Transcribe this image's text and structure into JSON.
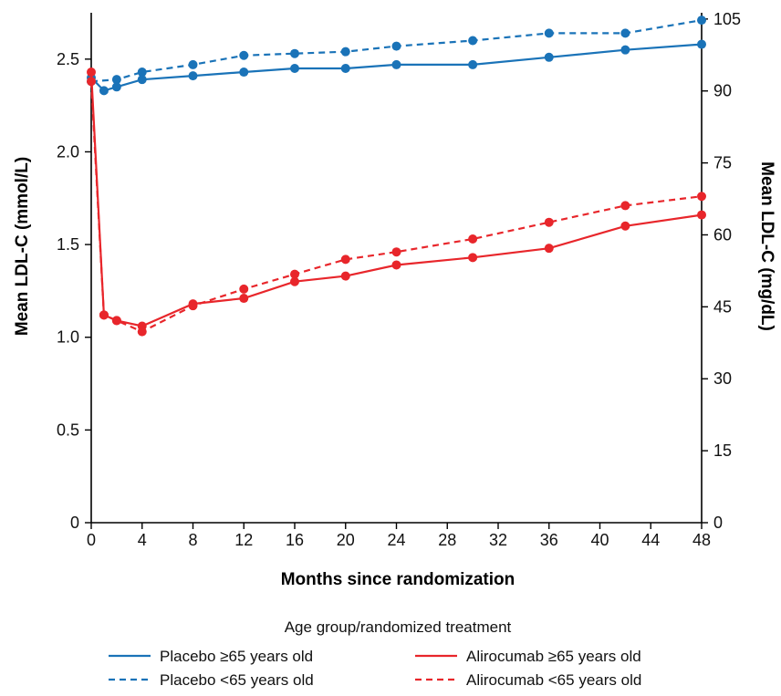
{
  "chart_data": {
    "type": "line",
    "xlabel": "Months since randomization",
    "ylabel_left": "Mean LDL-C (mmol/L)",
    "ylabel_right": "Mean LDL-C (mg/dL)",
    "xlim": [
      0,
      48
    ],
    "ylim": [
      0,
      2.75
    ],
    "ylim_right": [
      0,
      106.3
    ],
    "x_ticks": [
      0,
      4,
      8,
      12,
      16,
      20,
      24,
      28,
      32,
      36,
      40,
      44,
      48
    ],
    "y_ticks_left": [
      0,
      0.5,
      1.0,
      1.5,
      2.0,
      2.5
    ],
    "y_tick_labels_left": [
      "0",
      "0.5",
      "1.0",
      "1.5",
      "2.0",
      "2.5"
    ],
    "y_ticks_right": [
      0,
      15,
      30,
      45,
      60,
      75,
      90,
      105
    ],
    "y_tick_labels_right": [
      "0",
      "15",
      "30",
      "45",
      "60",
      "75",
      "90",
      "105"
    ],
    "grid": false,
    "legend_title": "Age group/randomized treatment",
    "legend_position": "bottom",
    "series": [
      {
        "name": "Placebo ≥65 years old",
        "color": "#1a73b8",
        "dash": "solid",
        "x": [
          0,
          1,
          2,
          4,
          8,
          12,
          16,
          20,
          24,
          30,
          36,
          42,
          48
        ],
        "y": [
          2.4,
          2.33,
          2.35,
          2.39,
          2.41,
          2.43,
          2.45,
          2.45,
          2.47,
          2.47,
          2.51,
          2.55,
          2.58
        ]
      },
      {
        "name": "Placebo <65 years old",
        "color": "#1a73b8",
        "dash": "dashed",
        "x": [
          0,
          2,
          4,
          8,
          12,
          16,
          20,
          24,
          30,
          36,
          42,
          48
        ],
        "y": [
          2.38,
          2.39,
          2.43,
          2.47,
          2.52,
          2.53,
          2.54,
          2.57,
          2.6,
          2.64,
          2.64,
          2.71
        ]
      },
      {
        "name": "Alirocumab ≥65 years old",
        "color": "#e8262b",
        "dash": "solid",
        "x": [
          0,
          1,
          2,
          4,
          8,
          12,
          16,
          20,
          24,
          30,
          36,
          42,
          48
        ],
        "y": [
          2.43,
          1.12,
          1.09,
          1.06,
          1.18,
          1.21,
          1.3,
          1.33,
          1.39,
          1.43,
          1.48,
          1.6,
          1.66
        ]
      },
      {
        "name": "Alirocumab <65 years old",
        "color": "#e8262b",
        "dash": "dashed",
        "x": [
          0,
          1,
          2,
          4,
          8,
          12,
          16,
          20,
          24,
          30,
          36,
          42,
          48
        ],
        "y": [
          2.38,
          1.12,
          1.09,
          1.03,
          1.17,
          1.26,
          1.34,
          1.42,
          1.46,
          1.53,
          1.62,
          1.71,
          1.76
        ]
      }
    ]
  }
}
